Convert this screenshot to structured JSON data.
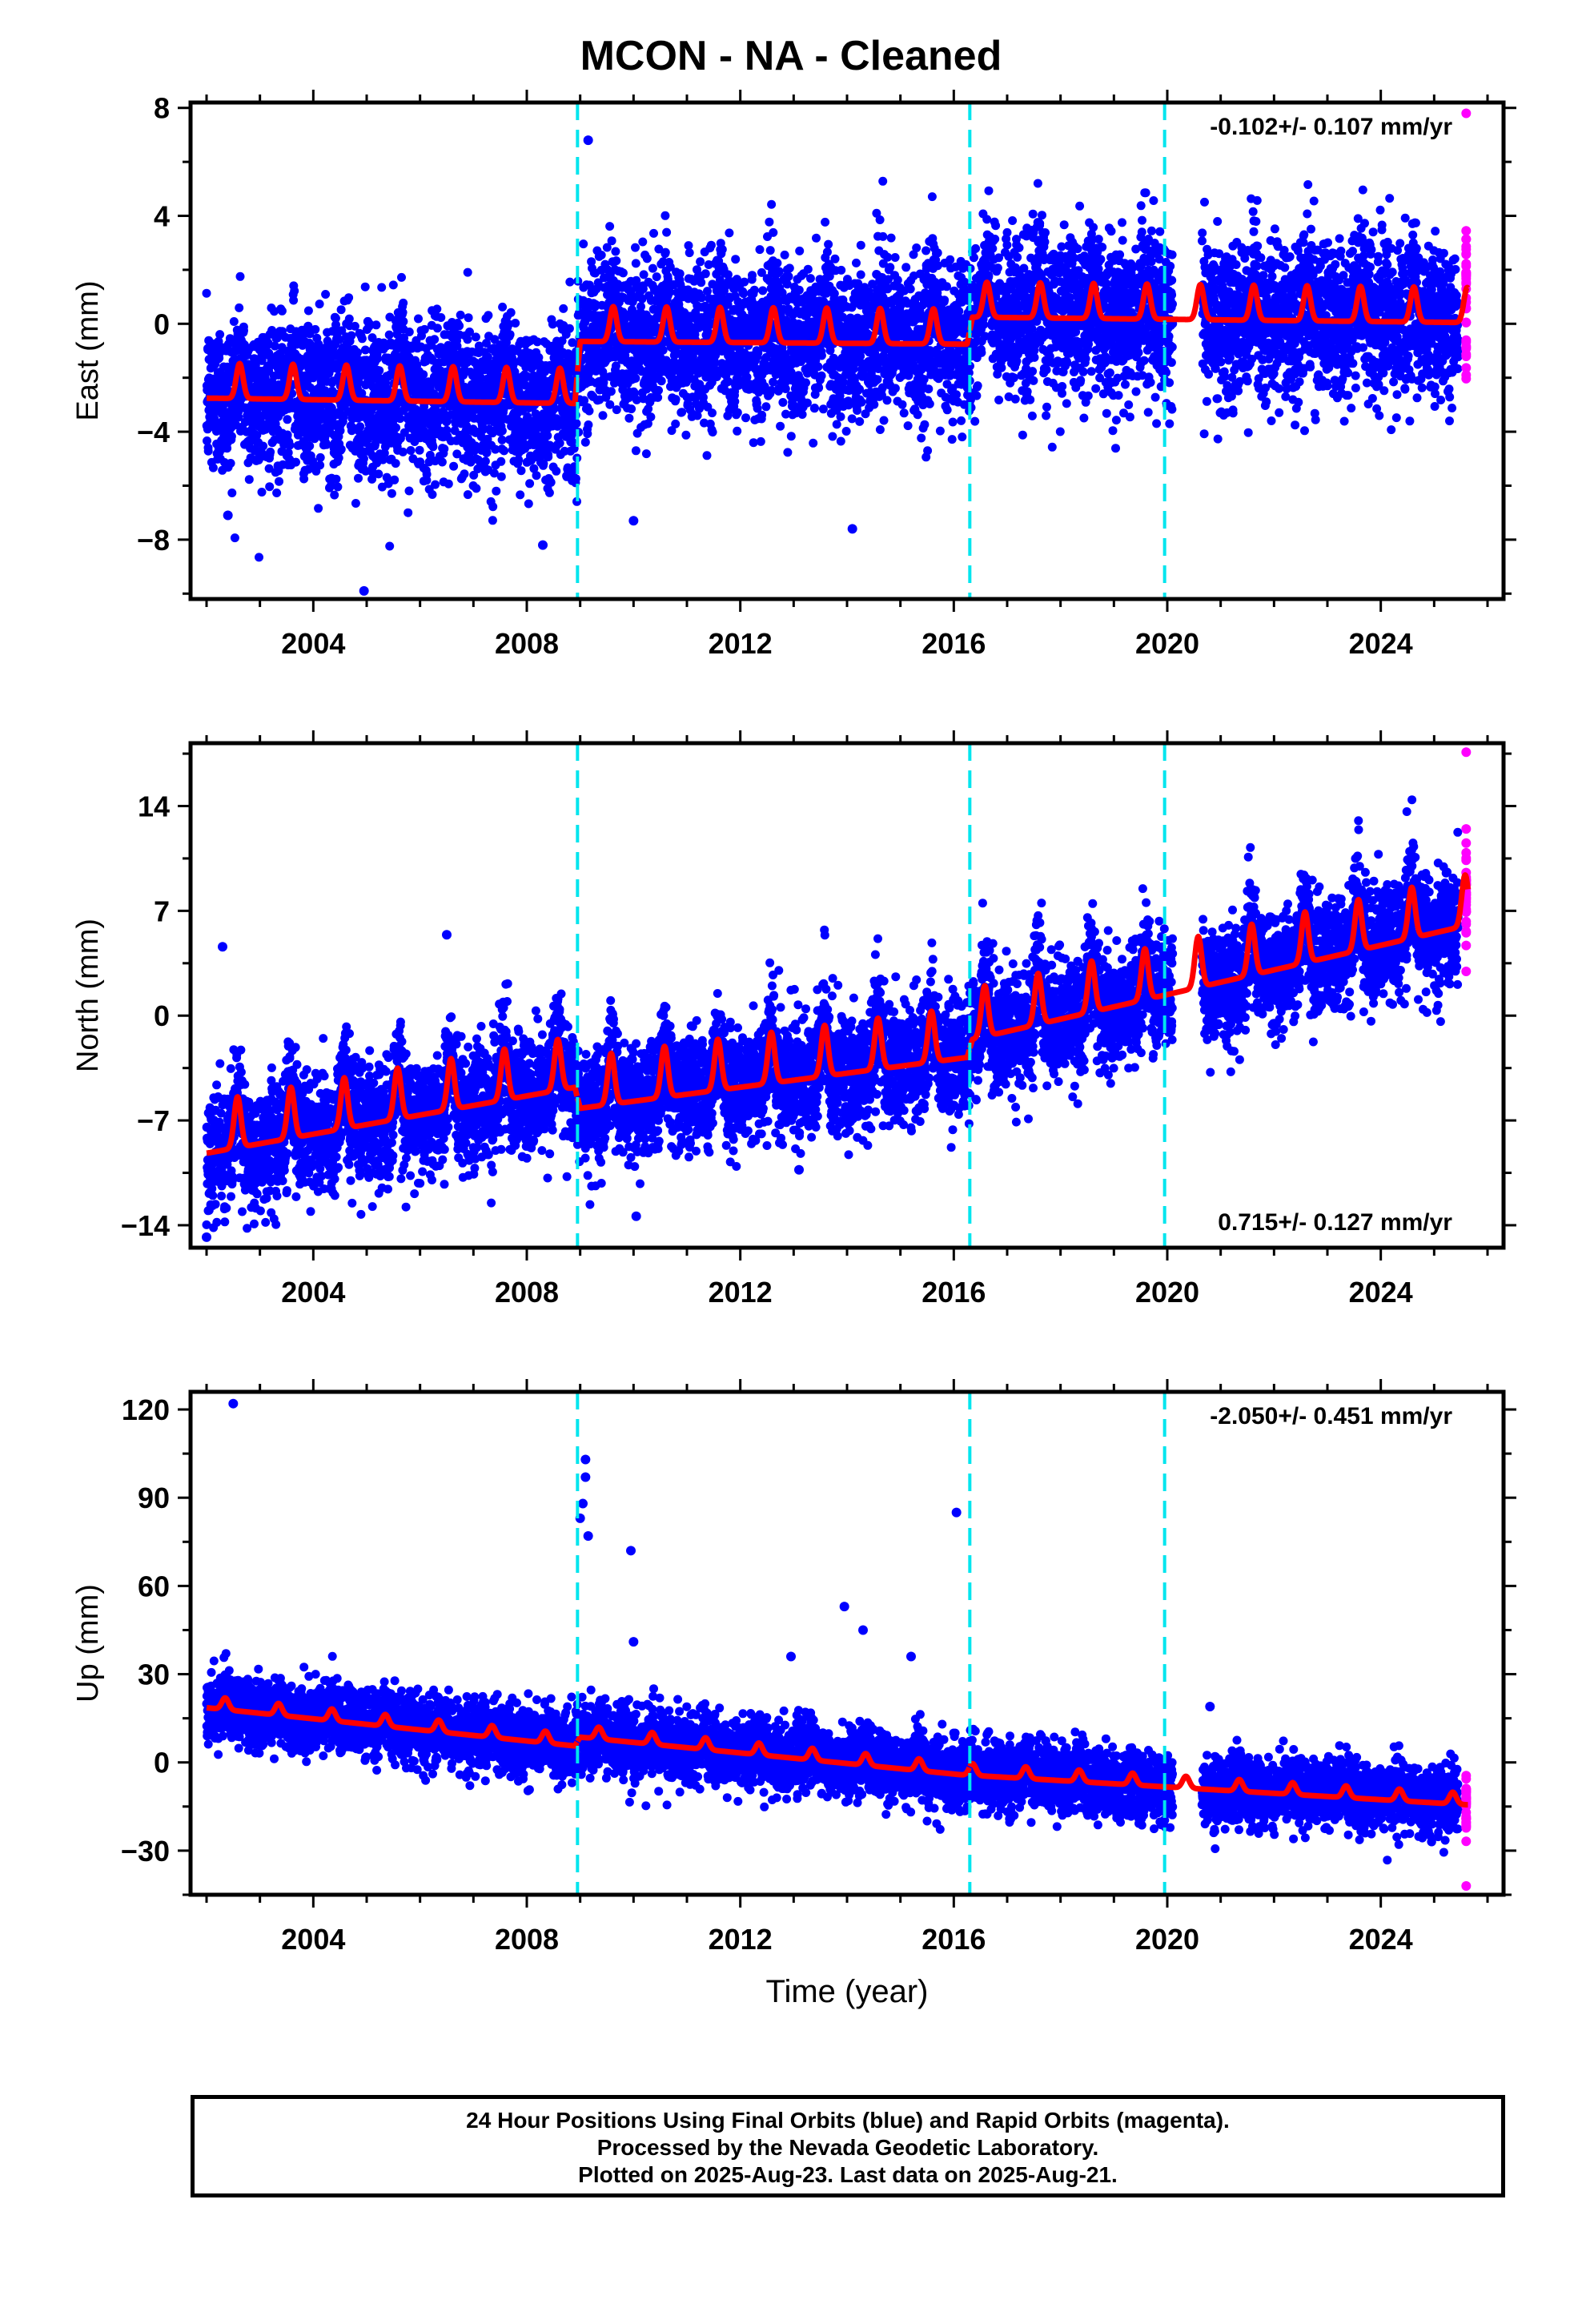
{
  "title": "MCON  - NA - Cleaned",
  "footer": {
    "line1": "24 Hour Positions Using Final Orbits (blue) and Rapid Orbits (magenta).",
    "line2": "Processed by the Nevada Geodetic Laboratory.",
    "line3": "Plotted on 2025-Aug-23. Last data on 2025-Aug-21."
  },
  "colors": {
    "final_orbits": "#0000ff",
    "rapid_orbits": "#ff00ff",
    "model_fit": "#ff0000",
    "equipment_change_lines": "#00e5ee"
  },
  "chart_data": [
    {
      "type": "scatter",
      "component": "east",
      "ylabel": "East (mm)",
      "xlabel": "",
      "xlim": [
        2001.7,
        2026.3
      ],
      "ylim": [
        -10.2,
        8.2
      ],
      "x_ticks": [
        2004,
        2008,
        2012,
        2016,
        2020,
        2024
      ],
      "y_ticks": [
        -8,
        -4,
        0,
        4,
        8
      ],
      "y_tick_labels": [
        "−8",
        "−4",
        "0",
        "4",
        "8"
      ],
      "rate_label": "-0.102+/- 0.107 mm/yr",
      "rate_label_position": "top-right",
      "equipment_changes": [
        2008.95,
        2016.3,
        2019.95
      ],
      "fit": {
        "baseline": [
          [
            2002.0,
            -2.3
          ],
          [
            2008.9,
            -2.5
          ],
          [
            2009.0,
            -0.2
          ],
          [
            2016.25,
            -0.3
          ],
          [
            2016.35,
            0.7
          ],
          [
            2025.6,
            0.5
          ]
        ],
        "amplitude": 1.3,
        "peak_phase": 0.62
      },
      "scatter_sigma": 1.4,
      "final_range": [
        2002.0,
        2025.45
      ],
      "rapid_range": [
        2025.45,
        2025.64
      ],
      "gaps": [
        [
          2020.1,
          2020.65
        ]
      ],
      "outliers": [
        [
          2004.95,
          -9.9
        ],
        [
          2008.3,
          -8.2
        ],
        [
          2009.15,
          6.8
        ],
        [
          2010.0,
          -7.3
        ],
        [
          2002.4,
          -7.1
        ],
        [
          2014.1,
          -7.6
        ],
        [
          2025.6,
          7.8
        ]
      ]
    },
    {
      "type": "scatter",
      "component": "north",
      "ylabel": "North (mm)",
      "xlabel": "",
      "xlim": [
        2001.7,
        2026.3
      ],
      "ylim": [
        -15.5,
        18.2
      ],
      "x_ticks": [
        2004,
        2008,
        2012,
        2016,
        2020,
        2024
      ],
      "y_ticks": [
        -14,
        -7,
        0,
        7,
        14
      ],
      "y_tick_labels": [
        "−14",
        "−7",
        "0",
        "7",
        "14"
      ],
      "rate_label": "0.715+/- 0.127 mm/yr",
      "rate_label_position": "bottom-right",
      "equipment_changes": [
        2008.95,
        2016.3,
        2019.95
      ],
      "fit": {
        "baseline": [
          [
            2002.0,
            -8.0
          ],
          [
            2008.9,
            -3.6
          ],
          [
            2009.0,
            -5.0
          ],
          [
            2016.25,
            -1.6
          ],
          [
            2016.35,
            -0.4
          ],
          [
            2025.6,
            7.2
          ]
        ],
        "amplitude": 3.4,
        "peak_phase": 0.58
      },
      "scatter_sigma": 1.9,
      "final_range": [
        2002.0,
        2025.45
      ],
      "rapid_range": [
        2025.45,
        2025.64
      ],
      "gaps": [
        [
          2020.1,
          2020.65
        ]
      ],
      "outliers": [
        [
          2002.0,
          -14.8
        ],
        [
          2002.3,
          4.6
        ],
        [
          2010.05,
          -13.4
        ],
        [
          2013.1,
          -10.3
        ],
        [
          2016.0,
          -6.0
        ],
        [
          2006.5,
          5.4
        ],
        [
          2025.6,
          17.6
        ]
      ]
    },
    {
      "type": "scatter",
      "component": "up",
      "ylabel": "Up (mm)",
      "xlabel": "Time (year)",
      "xlim": [
        2001.7,
        2026.3
      ],
      "ylim": [
        -45,
        126
      ],
      "x_ticks": [
        2004,
        2008,
        2012,
        2016,
        2020,
        2024
      ],
      "y_ticks": [
        -30,
        0,
        30,
        60,
        90,
        120
      ],
      "y_tick_labels": [
        "−30",
        "0",
        "30",
        "60",
        "90",
        "120"
      ],
      "rate_label": "-2.050+/- 0.451 mm/yr",
      "rate_label_position": "top-right",
      "equipment_changes": [
        2008.95,
        2016.3,
        2019.95
      ],
      "fit": {
        "baseline": [
          [
            2002.0,
            20.0
          ],
          [
            2008.9,
            7.0
          ],
          [
            2009.0,
            10.0
          ],
          [
            2016.25,
            -3.0
          ],
          [
            2016.35,
            -3.0
          ],
          [
            2025.6,
            -13.0
          ]
        ],
        "amplitude": 4.0,
        "peak_phase": 0.35
      },
      "scatter_sigma": 5.5,
      "final_range": [
        2002.0,
        2025.45
      ],
      "rapid_range": [
        2025.45,
        2025.64
      ],
      "gaps": [
        [
          2020.1,
          2020.65
        ]
      ],
      "outliers": [
        [
          2002.5,
          122.0
        ],
        [
          2009.1,
          103.0
        ],
        [
          2009.1,
          97.0
        ],
        [
          2009.05,
          88.0
        ],
        [
          2009.0,
          83.0
        ],
        [
          2009.15,
          77.0
        ],
        [
          2009.95,
          72.0
        ],
        [
          2016.05,
          85.0
        ],
        [
          2013.95,
          53.0
        ],
        [
          2014.3,
          45.0
        ],
        [
          2015.2,
          36.0
        ],
        [
          2012.95,
          36.0
        ],
        [
          2010.0,
          41.0
        ],
        [
          2020.8,
          19.0
        ],
        [
          2025.6,
          -42.0
        ]
      ]
    }
  ]
}
